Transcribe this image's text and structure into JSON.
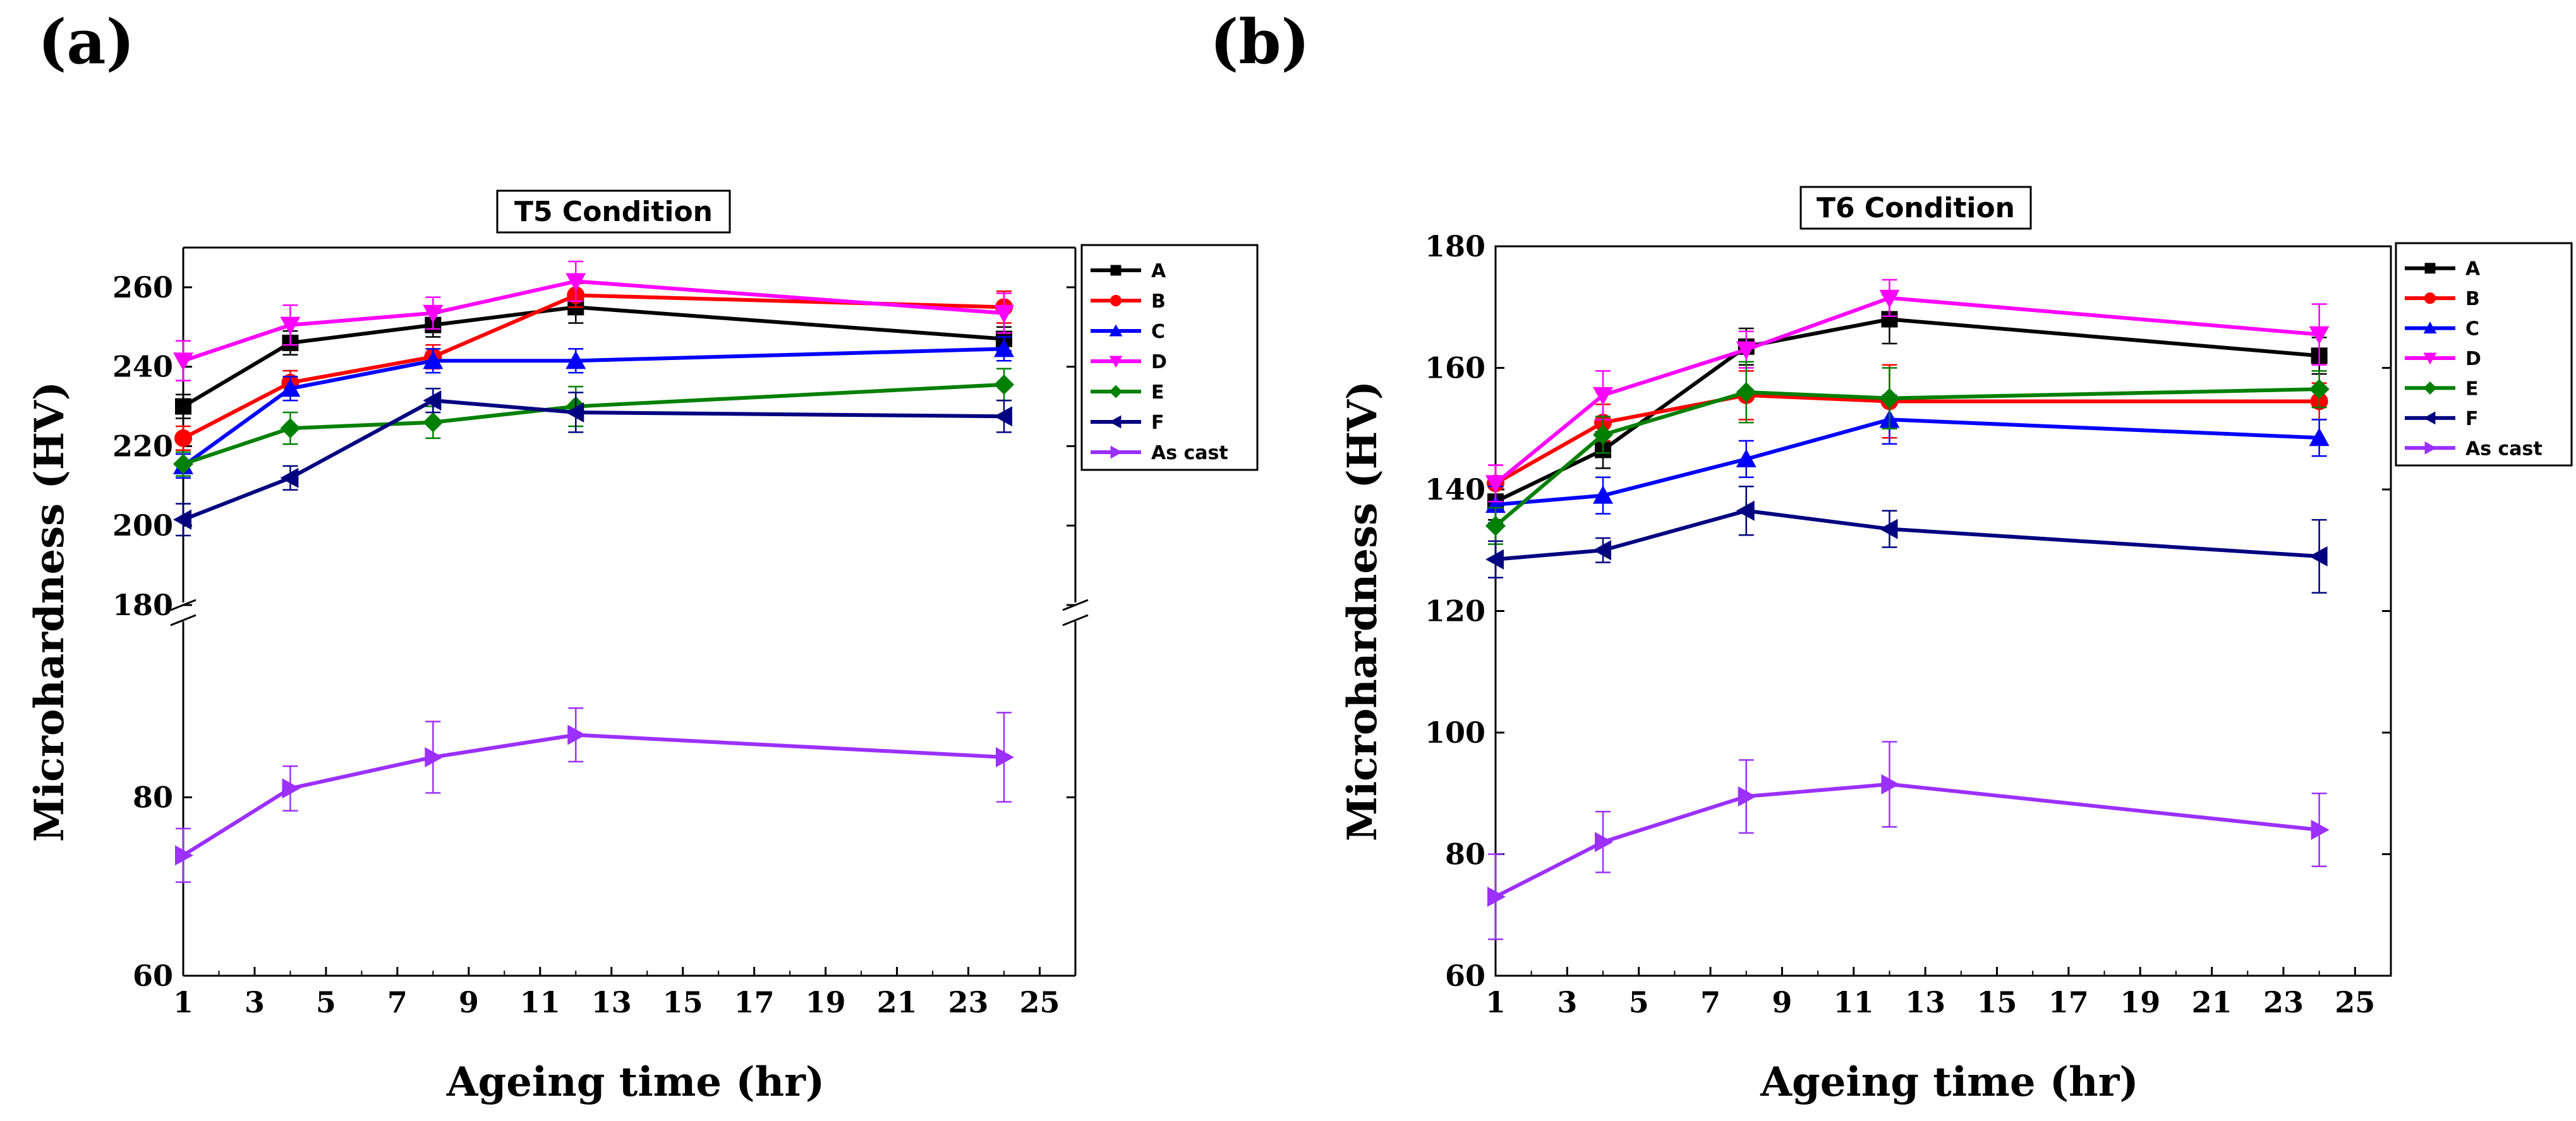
{
  "figure": {
    "panel_labels": [
      "(a)",
      "(b)"
    ]
  },
  "chart_data": [
    {
      "type": "line",
      "panel": "(a)",
      "title": "T5 Condition",
      "xlabel": "Ageing time (hr)",
      "ylabel": "Microhardness (HV)",
      "x_ticks": [
        1,
        3,
        5,
        7,
        9,
        11,
        13,
        15,
        17,
        19,
        21,
        23,
        25
      ],
      "xlim": [
        1,
        26
      ],
      "y_axis_break": {
        "lower_range": [
          60,
          100
        ],
        "upper_range": [
          180,
          270
        ],
        "lower_ticks": [
          60,
          80
        ],
        "upper_ticks": [
          180,
          200,
          220,
          240,
          260
        ]
      },
      "legend": [
        "A",
        "B",
        "C",
        "D",
        "E",
        "F",
        "As cast"
      ],
      "series": [
        {
          "name": "A",
          "color": "#000000",
          "marker": "square",
          "x": [
            1,
            4,
            8,
            12,
            24
          ],
          "y": [
            230,
            246,
            250.5,
            255,
            247
          ],
          "err": [
            3,
            3,
            3,
            4,
            3
          ]
        },
        {
          "name": "B",
          "color": "#ff0000",
          "marker": "circle",
          "x": [
            1,
            4,
            8,
            12,
            24
          ],
          "y": [
            222,
            236,
            242.5,
            258,
            255
          ],
          "err": [
            3,
            3,
            3,
            3,
            4
          ]
        },
        {
          "name": "C",
          "color": "#0000ff",
          "marker": "triangle-up",
          "x": [
            1,
            4,
            8,
            12,
            24
          ],
          "y": [
            215,
            234.5,
            241.5,
            241.5,
            244.5
          ],
          "err": [
            3,
            3,
            3,
            3,
            3
          ]
        },
        {
          "name": "D",
          "color": "#ff00ff",
          "marker": "triangle-down",
          "x": [
            1,
            4,
            8,
            12,
            24
          ],
          "y": [
            241.5,
            250.5,
            253.5,
            261.5,
            253.5
          ],
          "err": [
            5,
            5,
            4,
            5,
            5
          ]
        },
        {
          "name": "E",
          "color": "#008000",
          "marker": "diamond",
          "x": [
            1,
            4,
            8,
            12,
            24
          ],
          "y": [
            215.5,
            224.5,
            226,
            230,
            235.5
          ],
          "err": [
            3,
            4,
            4,
            5,
            4
          ]
        },
        {
          "name": "F",
          "color": "#000080",
          "marker": "triangle-left",
          "x": [
            1,
            4,
            8,
            12,
            24
          ],
          "y": [
            201.5,
            212,
            231.5,
            228.5,
            227.5
          ],
          "err": [
            4,
            3,
            3,
            5,
            4
          ]
        },
        {
          "name": "As cast",
          "color": "#9b30ff",
          "marker": "triangle-right",
          "x": [
            1,
            4,
            8,
            12,
            24
          ],
          "y": [
            73.5,
            81,
            84.5,
            87,
            84.5
          ],
          "err": [
            3,
            2.5,
            4,
            3,
            5
          ]
        }
      ]
    },
    {
      "type": "line",
      "panel": "(b)",
      "title": "T6 Condition",
      "xlabel": "Ageing time (hr)",
      "ylabel": "Microhardness (HV)",
      "x_ticks": [
        1,
        3,
        5,
        7,
        9,
        11,
        13,
        15,
        17,
        19,
        21,
        23,
        25
      ],
      "xlim": [
        1,
        26
      ],
      "ylim": [
        60,
        180
      ],
      "y_ticks": [
        60,
        80,
        100,
        120,
        140,
        160,
        180
      ],
      "legend": [
        "A",
        "B",
        "C",
        "D",
        "E",
        "F",
        "As cast"
      ],
      "series": [
        {
          "name": "A",
          "color": "#000000",
          "marker": "square",
          "x": [
            1,
            4,
            8,
            12,
            24
          ],
          "y": [
            138,
            146.5,
            163.5,
            168,
            162
          ],
          "err": [
            3,
            3,
            3,
            4,
            3
          ]
        },
        {
          "name": "B",
          "color": "#ff0000",
          "marker": "circle",
          "x": [
            1,
            4,
            8,
            12,
            24
          ],
          "y": [
            141,
            151,
            155.5,
            154.5,
            154.5
          ],
          "err": [
            3,
            3,
            4,
            6,
            3
          ]
        },
        {
          "name": "C",
          "color": "#0000ff",
          "marker": "triangle-up",
          "x": [
            1,
            4,
            8,
            12,
            24
          ],
          "y": [
            137.5,
            139,
            145,
            151.5,
            148.5
          ],
          "err": [
            3,
            3,
            3,
            4,
            3
          ]
        },
        {
          "name": "D",
          "color": "#ff00ff",
          "marker": "triangle-down",
          "x": [
            1,
            4,
            8,
            12,
            24
          ],
          "y": [
            141,
            155.5,
            163,
            171.5,
            165.5
          ],
          "err": [
            3,
            4,
            3,
            3,
            5
          ]
        },
        {
          "name": "E",
          "color": "#008000",
          "marker": "diamond",
          "x": [
            1,
            4,
            8,
            12,
            24
          ],
          "y": [
            134,
            149,
            156,
            155,
            156.5
          ],
          "err": [
            3,
            3,
            5,
            5,
            3
          ]
        },
        {
          "name": "F",
          "color": "#000080",
          "marker": "triangle-left",
          "x": [
            1,
            4,
            8,
            12,
            24
          ],
          "y": [
            128.5,
            130,
            136.5,
            133.5,
            129
          ],
          "err": [
            3,
            2,
            4,
            3,
            6
          ]
        },
        {
          "name": "As cast",
          "color": "#9b30ff",
          "marker": "triangle-right",
          "x": [
            1,
            4,
            8,
            12,
            24
          ],
          "y": [
            73,
            82,
            89.5,
            91.5,
            84
          ],
          "err": [
            7,
            5,
            6,
            7,
            6
          ]
        }
      ]
    }
  ]
}
